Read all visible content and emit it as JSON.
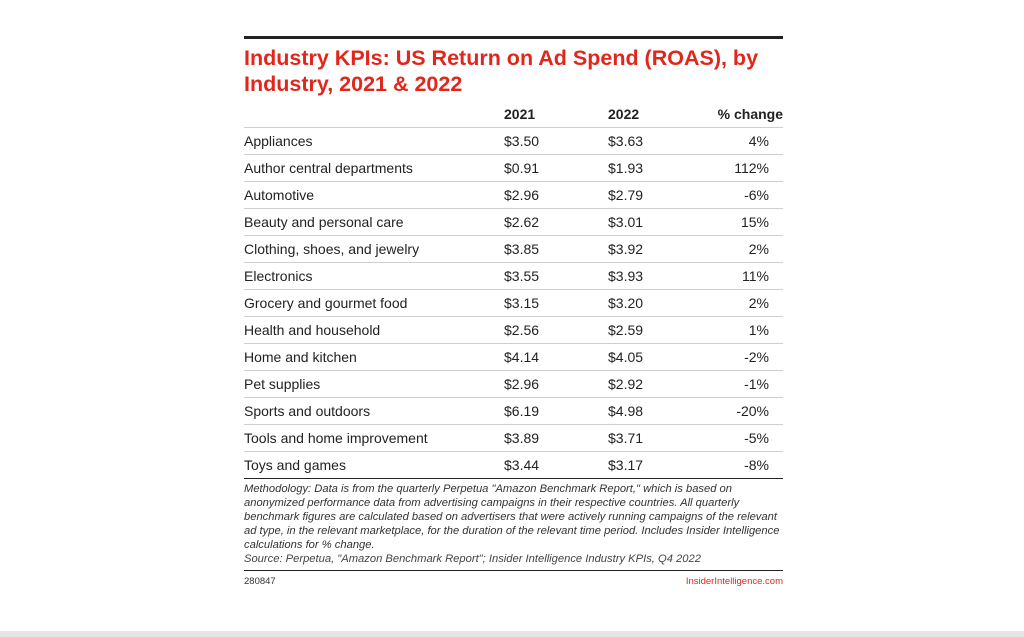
{
  "title": "Industry KPIs: US Return on Ad Spend (ROAS), by Industry, 2021 & 2022",
  "chart_data": {
    "type": "table",
    "columns": [
      "",
      "2021",
      "2022",
      "% change"
    ],
    "rows": [
      {
        "industry": "Appliances",
        "y2021": "$3.50",
        "y2022": "$3.63",
        "change": "4%"
      },
      {
        "industry": "Author central departments",
        "y2021": "$0.91",
        "y2022": "$1.93",
        "change": "112%"
      },
      {
        "industry": "Automotive",
        "y2021": "$2.96",
        "y2022": "$2.79",
        "change": "-6%"
      },
      {
        "industry": "Beauty and personal care",
        "y2021": "$2.62",
        "y2022": "$3.01",
        "change": "15%"
      },
      {
        "industry": "Clothing, shoes, and jewelry",
        "y2021": "$3.85",
        "y2022": "$3.92",
        "change": "2%"
      },
      {
        "industry": "Electronics",
        "y2021": "$3.55",
        "y2022": "$3.93",
        "change": "11%"
      },
      {
        "industry": "Grocery and gourmet food",
        "y2021": "$3.15",
        "y2022": "$3.20",
        "change": "2%"
      },
      {
        "industry": "Health and household",
        "y2021": "$2.56",
        "y2022": "$2.59",
        "change": "1%"
      },
      {
        "industry": "Home and kitchen",
        "y2021": "$4.14",
        "y2022": "$4.05",
        "change": "-2%"
      },
      {
        "industry": "Pet supplies",
        "y2021": "$2.96",
        "y2022": "$2.92",
        "change": "-1%"
      },
      {
        "industry": "Sports and outdoors",
        "y2021": "$6.19",
        "y2022": "$4.98",
        "change": "-20%"
      },
      {
        "industry": "Tools and home improvement",
        "y2021": "$3.89",
        "y2022": "$3.71",
        "change": "-5%"
      },
      {
        "industry": "Toys and games",
        "y2021": "$3.44",
        "y2022": "$3.17",
        "change": "-8%"
      }
    ]
  },
  "note": "Methodology: Data is from the quarterly Perpetua \"Amazon Benchmark Report,\" which is based on anonymized performance data from advertising campaigns in their respective countries. All quarterly benchmark figures are calculated based on advertisers that were actively running campaigns of the relevant ad type, in the relevant marketplace, for the duration of the relevant time period. Includes Insider Intelligence calculations for % change.",
  "source": "Source: Perpetua, \"Amazon Benchmark Report\"; Insider Intelligence Industry KPIs, Q4 2022",
  "footer": {
    "chart_id": "280847",
    "brand": "InsiderIntelligence.com"
  },
  "colors": {
    "accent": "#e1261c",
    "text": "#222222",
    "rule": "#cfcfcf"
  }
}
